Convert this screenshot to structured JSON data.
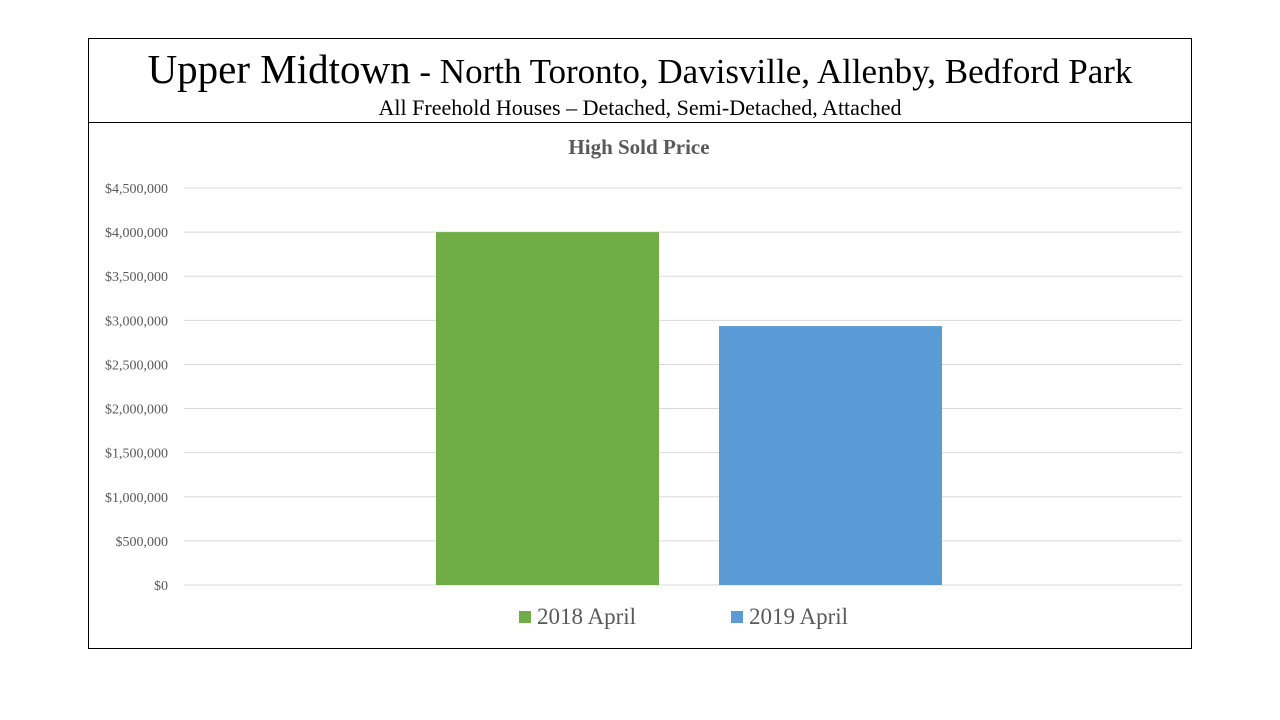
{
  "header": {
    "title_main": "Upper Midtown",
    "title_rest": " - North Toronto, Davisville, Allenby, Bedford Park",
    "subtitle": "All Freehold Houses – Detached, Semi-Detached, Attached"
  },
  "chart_data": {
    "type": "bar",
    "title": "High Sold Price",
    "categories": [
      "2018 April",
      "2019 April"
    ],
    "values": [
      4000000,
      2935000
    ],
    "colors": [
      "#70AD47",
      "#5B9BD5"
    ],
    "ylim": [
      0,
      4500000
    ],
    "yticks": [
      0,
      500000,
      1000000,
      1500000,
      2000000,
      2500000,
      3000000,
      3500000,
      4000000,
      4500000
    ],
    "ytick_labels": [
      "$0",
      "$500,000",
      "$1,000,000",
      "$1,500,000",
      "$2,000,000",
      "$2,500,000",
      "$3,000,000",
      "$3,500,000",
      "$4,000,000",
      "$4,500,000"
    ],
    "grid": true,
    "legend": "bottom"
  }
}
